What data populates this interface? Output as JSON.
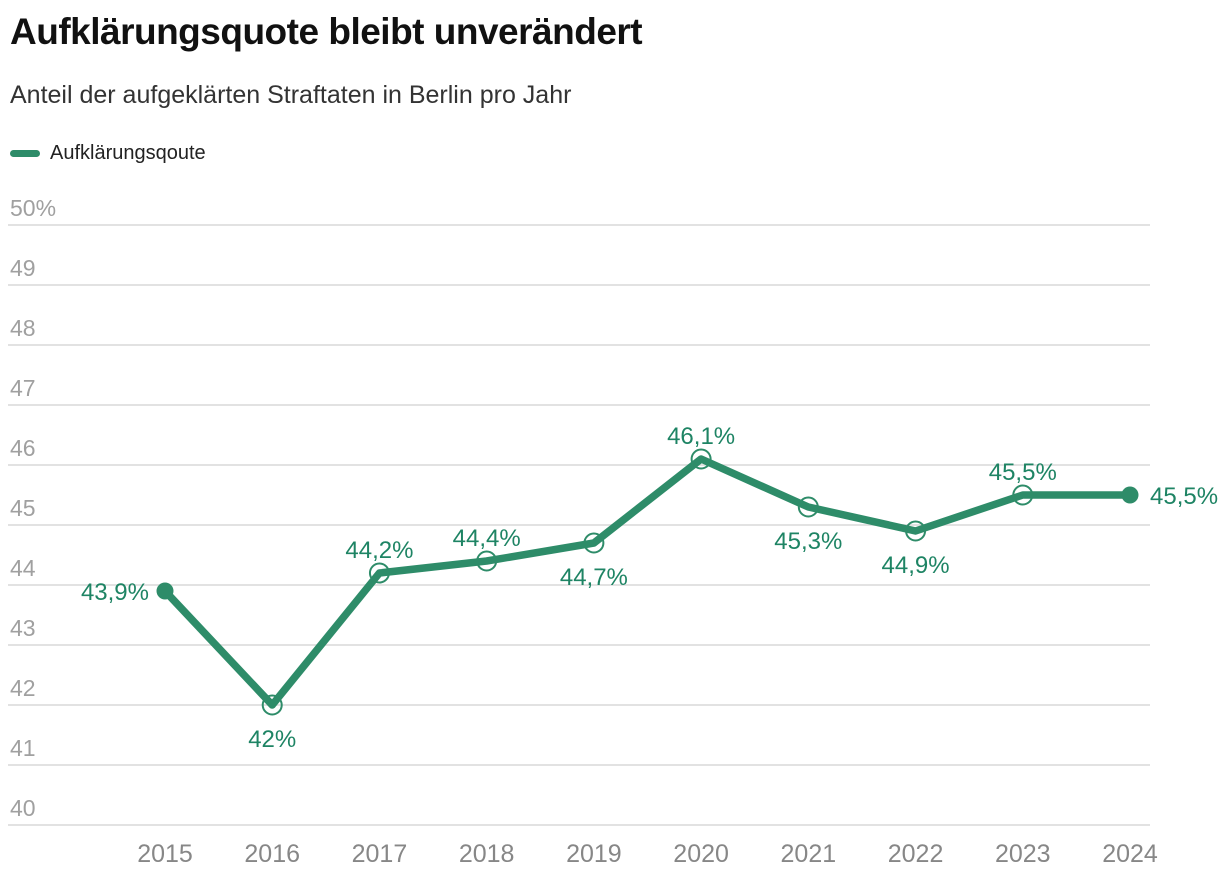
{
  "header": {
    "title": "Aufklärungsquote bleibt unverändert",
    "subtitle": "Anteil der aufgeklärten Straftaten in Berlin pro Jahr"
  },
  "colors": {
    "line": "#2e8c69",
    "value_label": "#1e8464",
    "grid": "#e2e2e2",
    "y_axis_text": "#a0a0a0",
    "x_axis_text": "#878787",
    "title": "#111111",
    "subtitle": "#333333",
    "legend_text": "#222222"
  },
  "chart_data": {
    "type": "line",
    "title": "Aufklärungsquote bleibt unverändert",
    "subtitle": "Anteil der aufgeklärten Straftaten in Berlin pro Jahr",
    "xlabel": "",
    "ylabel": "",
    "ylim": [
      40,
      50
    ],
    "grid": true,
    "legend_position": "top-left",
    "categories": [
      "2015",
      "2016",
      "2017",
      "2018",
      "2019",
      "2020",
      "2021",
      "2022",
      "2023",
      "2024"
    ],
    "series": [
      {
        "name": "Aufklärungsqoute",
        "values": [
          43.9,
          42,
          44.2,
          44.4,
          44.7,
          46.1,
          45.3,
          44.9,
          45.5,
          45.5
        ]
      }
    ],
    "point_labels": [
      "43,9%",
      "42%",
      "44,2%",
      "44,4%",
      "44,7%",
      "46,1%",
      "45,3%",
      "44,9%",
      "45,5%",
      "45,5%"
    ],
    "point_label_positions": [
      "left",
      "below",
      "above",
      "above",
      "below",
      "above",
      "below",
      "below",
      "above",
      "right"
    ],
    "y_ticks": [
      {
        "value": 50,
        "label": "50%"
      },
      {
        "value": 49,
        "label": "49"
      },
      {
        "value": 48,
        "label": "48"
      },
      {
        "value": 47,
        "label": "47"
      },
      {
        "value": 46,
        "label": "46"
      },
      {
        "value": 45,
        "label": "45"
      },
      {
        "value": 44,
        "label": "44"
      },
      {
        "value": 43,
        "label": "43"
      },
      {
        "value": 42,
        "label": "42"
      },
      {
        "value": 41,
        "label": "41"
      },
      {
        "value": 40,
        "label": "40"
      }
    ]
  }
}
